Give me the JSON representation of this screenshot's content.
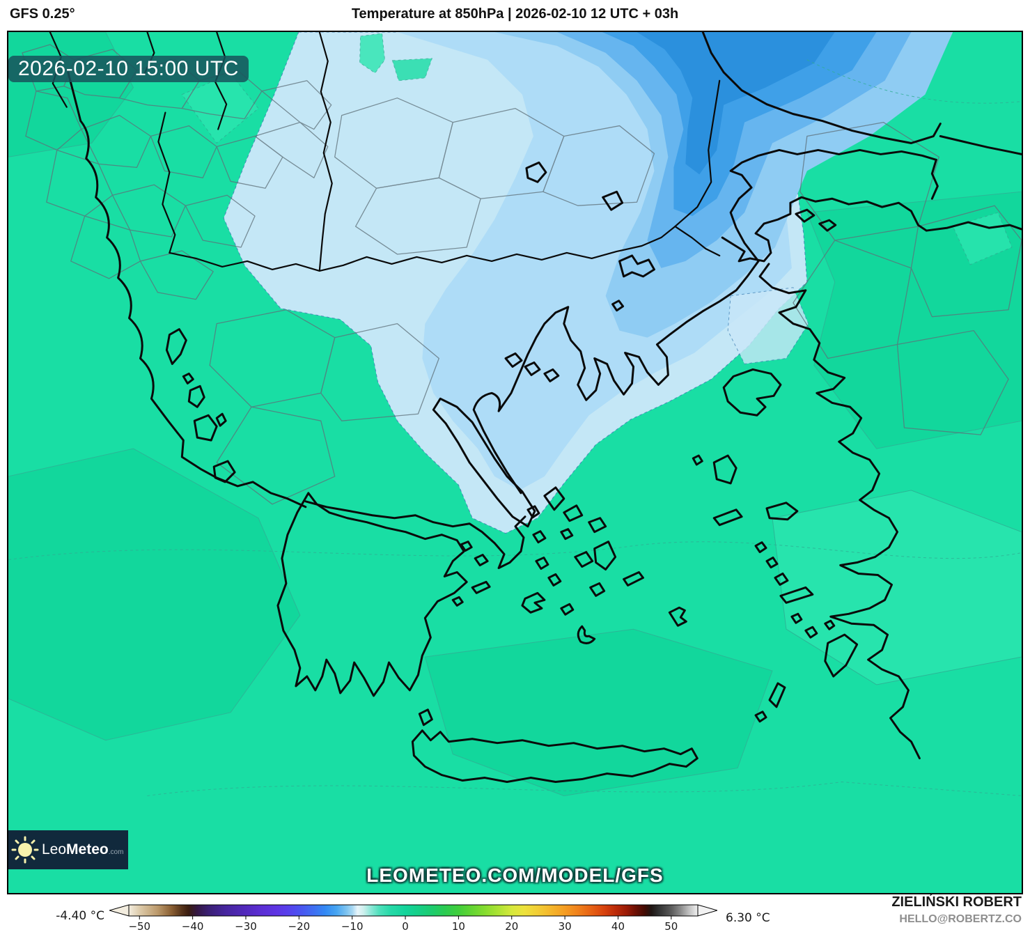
{
  "header": {
    "model_label": "GFS 0.25°",
    "title": "Temperature at 850hPa | 2026-02-10 12 UTC + 03h"
  },
  "map": {
    "timestamp_badge": "2026-02-10 15:00 UTC",
    "watermark": "LEOMETEO.COM/MODEL/GFS"
  },
  "logo": {
    "name_light": "Leo",
    "name_bold": "Meteo",
    "suffix": ".com"
  },
  "colorbar": {
    "min_annotation": "-4.40 °C",
    "max_annotation": "6.30 °C",
    "unit": "°C",
    "range": [
      -52,
      55
    ],
    "ticks": [
      {
        "v": -50,
        "label": "−50"
      },
      {
        "v": -40,
        "label": "−40"
      },
      {
        "v": -30,
        "label": "−30"
      },
      {
        "v": -20,
        "label": "−20"
      },
      {
        "v": -10,
        "label": "−10"
      },
      {
        "v": 0,
        "label": "0"
      },
      {
        "v": 10,
        "label": "10"
      },
      {
        "v": 20,
        "label": "20"
      },
      {
        "v": 30,
        "label": "30"
      },
      {
        "v": 40,
        "label": "40"
      },
      {
        "v": 50,
        "label": "50"
      }
    ],
    "gradient": [
      {
        "p": 0,
        "c": "#F3EDDF"
      },
      {
        "p": 2,
        "c": "#DCC9A8"
      },
      {
        "p": 5,
        "c": "#BC9A6C"
      },
      {
        "p": 7.5,
        "c": "#8A5F33"
      },
      {
        "p": 9.3,
        "c": "#56331A"
      },
      {
        "p": 10.5,
        "c": "#3A1D10"
      },
      {
        "p": 12,
        "c": "#341743"
      },
      {
        "p": 14,
        "c": "#3A1F73"
      },
      {
        "p": 17,
        "c": "#46259E"
      },
      {
        "p": 20.6,
        "c": "#5229BD"
      },
      {
        "p": 23,
        "c": "#5B2ED2"
      },
      {
        "p": 26,
        "c": "#5E35E3"
      },
      {
        "p": 28,
        "c": "#5740EC"
      },
      {
        "p": 30,
        "c": "#4B52F0"
      },
      {
        "p": 32.7,
        "c": "#3E71F2"
      },
      {
        "p": 34.5,
        "c": "#3389F4"
      },
      {
        "p": 36.5,
        "c": "#47A5F2"
      },
      {
        "p": 38.3,
        "c": "#7FC4F0"
      },
      {
        "p": 39.3,
        "c": "#A8D8F2"
      },
      {
        "p": 40.2,
        "c": "#E8F5FA"
      },
      {
        "p": 41.2,
        "c": "#CFF0EE"
      },
      {
        "p": 42.5,
        "c": "#8FE8D8"
      },
      {
        "p": 44,
        "c": "#4FE0BC"
      },
      {
        "p": 46,
        "c": "#27D9A8"
      },
      {
        "p": 48.6,
        "c": "#13D49B"
      },
      {
        "p": 51,
        "c": "#16CF87"
      },
      {
        "p": 53.3,
        "c": "#1DCC6E"
      },
      {
        "p": 55.5,
        "c": "#2BCB52"
      },
      {
        "p": 57.9,
        "c": "#40CE3C"
      },
      {
        "p": 60,
        "c": "#5FD433"
      },
      {
        "p": 62.6,
        "c": "#86DC2F"
      },
      {
        "p": 65,
        "c": "#ADE334"
      },
      {
        "p": 67.3,
        "c": "#D6E83C"
      },
      {
        "p": 69.5,
        "c": "#EDE23C"
      },
      {
        "p": 72,
        "c": "#F2CC35"
      },
      {
        "p": 74.3,
        "c": "#F4B52B"
      },
      {
        "p": 76.6,
        "c": "#F59D22"
      },
      {
        "p": 79,
        "c": "#F0801B"
      },
      {
        "p": 81.3,
        "c": "#E66114"
      },
      {
        "p": 83.5,
        "c": "#D8430E"
      },
      {
        "p": 85.5,
        "c": "#BC2B09"
      },
      {
        "p": 87.5,
        "c": "#9A1A06"
      },
      {
        "p": 89,
        "c": "#6E1004"
      },
      {
        "p": 90.7,
        "c": "#420B03"
      },
      {
        "p": 91.8,
        "c": "#1F1512"
      },
      {
        "p": 93,
        "c": "#2E2E2E"
      },
      {
        "p": 95.3,
        "c": "#5A5A5A"
      },
      {
        "p": 97,
        "c": "#8C8C8C"
      },
      {
        "p": 98.5,
        "c": "#C2C2C2"
      },
      {
        "p": 100,
        "c": "#F2F2F2"
      }
    ]
  },
  "credits": {
    "author": "ZIELIŃSKI ROBERT",
    "email": "HELLO@ROBERTZ.CO"
  },
  "colors": {
    "teal": "#19DEA4",
    "teal_dark": "#11D69B",
    "teal_darker": "#0CCF94",
    "mint": "#2BE6B0",
    "pale_blue": "#CAE8F9",
    "light_blue": "#AEDCF7",
    "mid_blue": "#8FCCF3",
    "deep_blue": "#66B5EF",
    "dark_blue": "#3FA0E8",
    "darkest_blue": "#2B90DD",
    "badge_bg": "rgba(23,84,92,0.85)",
    "logo_bg": "#11293C",
    "sun_yellow": "#F7F2AC"
  }
}
